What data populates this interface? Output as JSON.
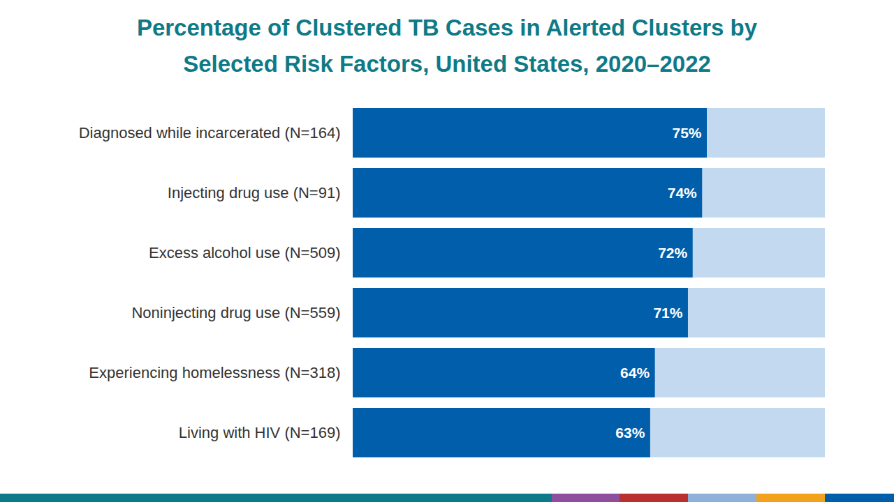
{
  "chart_data": {
    "type": "bar",
    "orientation": "horizontal",
    "title": "Percentage of Clustered TB Cases in Alerted Clusters by Selected Risk Factors, United States, 2020–2022",
    "categories": [
      "Diagnosed while incarcerated (N=164)",
      "Injecting drug use (N=91)",
      "Excess alcohol use (N=509)",
      "Noninjecting drug use (N=559)",
      "Experiencing homelessness (N=318)",
      "Living with HIV (N=169)"
    ],
    "values": [
      75,
      74,
      72,
      71,
      64,
      63
    ],
    "value_labels": [
      "75%",
      "74%",
      "72%",
      "71%",
      "64%",
      "63%"
    ],
    "color": "#005eaa",
    "xlim": [
      0,
      100
    ],
    "data_labels": true,
    "tick_labels": "y",
    "grid": false
  }
}
